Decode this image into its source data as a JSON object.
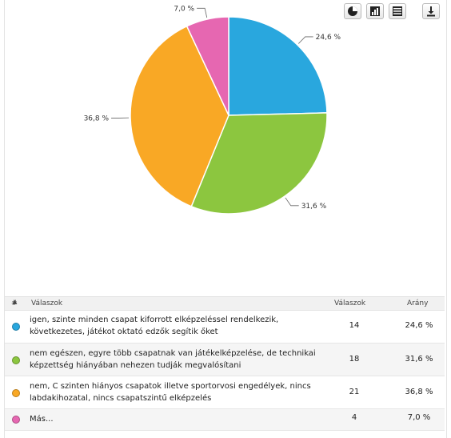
{
  "chart_data": {
    "type": "pie",
    "slices": [
      {
        "label": "igen, szinte minden csapat kiforrott elképzeléssel rendelkezik, következetes, játékot oktató edzők segítik őket",
        "value": 24.6,
        "display": "24,6 %",
        "color": "#29a7de"
      },
      {
        "label": "nem egészen, egyre több csapatnak van játékelképzelése, de technikai képzettség hiányában nehezen tudják megvalósítani",
        "value": 31.6,
        "display": "31,6 %",
        "color": "#8cc63f"
      },
      {
        "label": "nem, C szinten hiányos csapatok illetve sportorvosi engedélyek, nincs labdakihozatal, nincs csapatszintű elképzelés",
        "value": 36.8,
        "display": "36,8 %",
        "color": "#f9a825"
      },
      {
        "label": "Más...",
        "value": 7.0,
        "display": "7,0 %",
        "color": "#e667b1"
      }
    ]
  },
  "toolbar": {
    "icons": [
      "pie-view-icon",
      "bar-view-icon",
      "table-view-icon",
      "download-icon"
    ]
  },
  "table": {
    "headers": {
      "num": "#",
      "answer": "Válaszok",
      "count": "Válaszok",
      "share": "Arány"
    },
    "rows": [
      {
        "answer": "igen, szinte minden csapat kiforrott elképzeléssel rendelkezik, következetes, játékot oktató edzők segítik őket",
        "count": "14",
        "share": "24,6 %",
        "color": "#29a7de"
      },
      {
        "answer": "nem egészen, egyre több csapatnak van játékelképzelése, de technikai képzettség hiányában nehezen tudják megvalósítani",
        "count": "18",
        "share": "31,6 %",
        "color": "#8cc63f"
      },
      {
        "answer": "nem, C szinten hiányos csapatok illetve sportorvosi engedélyek, nincs labdakihozatal, nincs csapatszintű elképzelés",
        "count": "21",
        "share": "36,8 %",
        "color": "#f9a825"
      },
      {
        "answer": "Más...",
        "count": "4",
        "share": "7,0 %",
        "color": "#e667b1"
      }
    ]
  }
}
